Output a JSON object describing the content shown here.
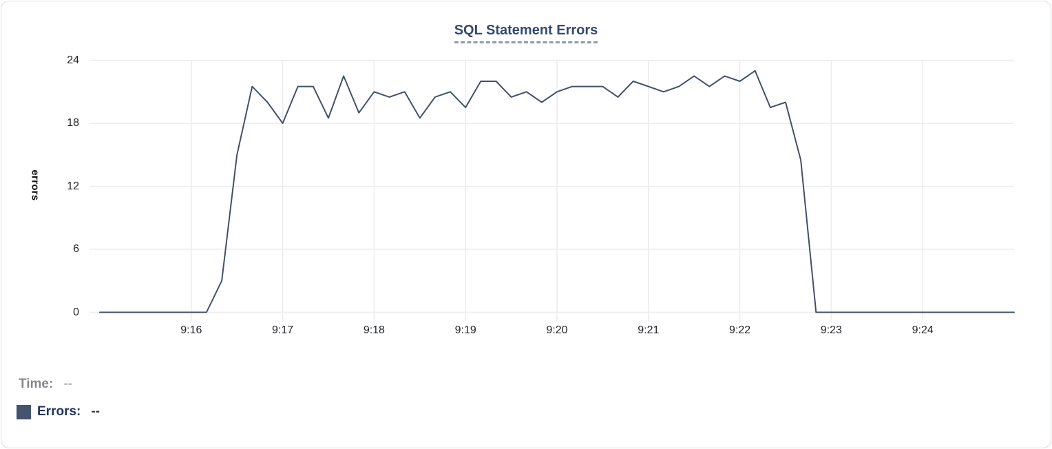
{
  "title": "SQL Statement Errors",
  "legend": {
    "time_label": "Time:",
    "time_value": "--",
    "errors_label": "Errors:",
    "errors_value": "--"
  },
  "colors": {
    "line": "#42506b",
    "legend_swatch": "#44546e",
    "title_text": "#36496e",
    "grid": "#ececec",
    "tick_text": "#1f2227",
    "legend_time_gray": "#85888c",
    "legend_errors_navy": "#24345c"
  },
  "chart_data": {
    "type": "line",
    "title": "SQL Statement Errors",
    "xlabel": "",
    "ylabel": "errors",
    "ylim": [
      0,
      24
    ],
    "y_ticks": [
      0,
      6,
      12,
      18,
      24
    ],
    "xlim": [
      "9:15:00",
      "9:25:00"
    ],
    "x_tick_labels": [
      "9:16",
      "9:17",
      "9:18",
      "9:19",
      "9:20",
      "9:21",
      "9:22",
      "9:23",
      "9:24"
    ],
    "grid": true,
    "legend_position": "bottom-left",
    "series": [
      {
        "name": "Errors",
        "color": "#42506b",
        "x": [
          "9:15:00",
          "9:15:10",
          "9:15:20",
          "9:15:30",
          "9:15:40",
          "9:15:50",
          "9:16:00",
          "9:16:10",
          "9:16:20",
          "9:16:30",
          "9:16:40",
          "9:16:50",
          "9:17:00",
          "9:17:10",
          "9:17:20",
          "9:17:30",
          "9:17:40",
          "9:17:50",
          "9:18:00",
          "9:18:10",
          "9:18:20",
          "9:18:30",
          "9:18:40",
          "9:18:50",
          "9:19:00",
          "9:19:10",
          "9:19:20",
          "9:19:30",
          "9:19:40",
          "9:19:50",
          "9:20:00",
          "9:20:10",
          "9:20:20",
          "9:20:30",
          "9:20:40",
          "9:20:50",
          "9:21:00",
          "9:21:10",
          "9:21:20",
          "9:21:30",
          "9:21:40",
          "9:21:50",
          "9:22:00",
          "9:22:10",
          "9:22:20",
          "9:22:30",
          "9:22:40",
          "9:22:50",
          "9:23:00",
          "9:23:10",
          "9:23:20",
          "9:23:30",
          "9:23:40",
          "9:23:50",
          "9:24:00",
          "9:24:10",
          "9:24:20",
          "9:24:30",
          "9:24:40",
          "9:24:50",
          "9:25:00"
        ],
        "values": [
          0,
          0,
          0,
          0,
          0,
          0,
          0,
          0,
          3,
          15,
          21.5,
          20,
          18,
          21.5,
          21.5,
          18.5,
          22.5,
          19,
          21,
          20.5,
          21,
          18.5,
          20.5,
          21,
          19.5,
          22,
          22,
          20.5,
          21,
          20,
          21,
          21.5,
          21.5,
          21.5,
          20.5,
          22,
          21.5,
          21,
          21.5,
          22.5,
          21.5,
          22.5,
          22,
          23,
          19.5,
          20,
          14.5,
          0,
          0,
          0,
          0,
          0,
          0,
          0,
          0,
          0,
          0,
          0,
          0,
          0,
          0
        ]
      }
    ]
  }
}
